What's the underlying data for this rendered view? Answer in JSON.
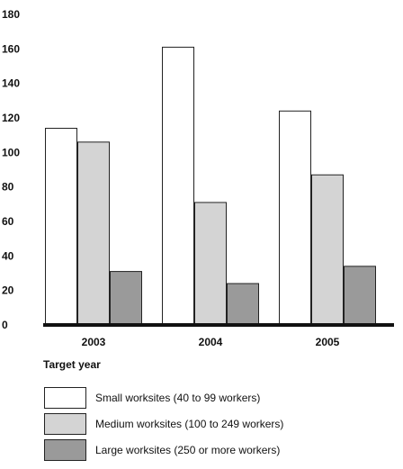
{
  "chart_data": {
    "type": "bar",
    "categories": [
      "2003",
      "2004",
      "2005"
    ],
    "series": [
      {
        "name": "Small worksites (40 to 99 workers)",
        "values": [
          114,
          161,
          124
        ],
        "color": "#ffffff"
      },
      {
        "name": "Medium worksites (100 to 249 workers)",
        "values": [
          106,
          71,
          87
        ],
        "color": "#d4d4d4"
      },
      {
        "name": "Large worksites (250 or more workers)",
        "values": [
          31,
          24,
          34
        ],
        "color": "#9a9a9a"
      }
    ],
    "xlabel": "Target year",
    "ylabel": "",
    "ylim": [
      0,
      180
    ],
    "yticks": [
      0,
      20,
      40,
      60,
      80,
      100,
      120,
      140,
      160,
      180
    ],
    "grid": false,
    "legend_position": "bottom"
  }
}
